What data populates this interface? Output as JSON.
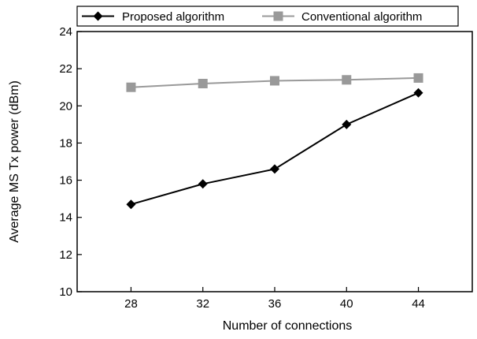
{
  "chart_data": {
    "type": "line",
    "title": "",
    "xlabel": "Number of connections",
    "ylabel": "Average MS Tx power (dBm)",
    "x": [
      28,
      32,
      36,
      40,
      44
    ],
    "xlim": [
      25,
      47
    ],
    "ylim": [
      10,
      24
    ],
    "yticks": [
      10,
      12,
      14,
      16,
      18,
      20,
      22,
      24
    ],
    "grid": false,
    "legend_position": "top",
    "series": [
      {
        "name": "Proposed algorithm",
        "values": [
          14.7,
          15.8,
          16.6,
          19.0,
          20.7
        ],
        "color": "#000000",
        "marker": "diamond"
      },
      {
        "name": "Conventional algorithm",
        "values": [
          21.0,
          21.2,
          21.35,
          21.4,
          21.5
        ],
        "color": "#999999",
        "marker": "square"
      }
    ]
  }
}
